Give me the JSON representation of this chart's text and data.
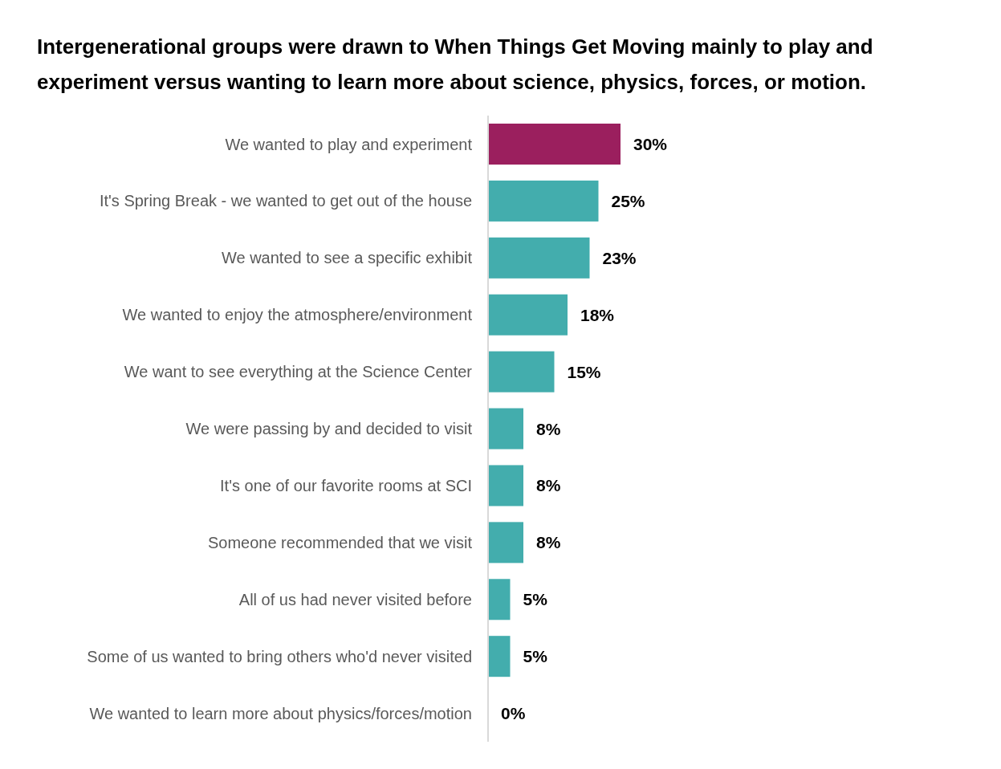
{
  "chart_data": {
    "type": "bar",
    "orientation": "horizontal",
    "title": "Intergenerational groups were drawn to When Things Get Moving mainly to play and experiment versus wanting to learn more about science, physics, forces, or motion.",
    "categories": [
      "We wanted to play and experiment",
      "It's Spring Break - we wanted to get out of the house",
      "We wanted to see a specific exhibit",
      "We wanted to enjoy the atmosphere/environment",
      "We want to see everything at the Science Center",
      "We were passing by and decided to visit",
      "It's one of our favorite rooms at SCI",
      "Someone recommended that we visit",
      "All of us had never visited before",
      "Some of us wanted to bring others who'd never visited",
      "We wanted to learn more about physics/forces/motion"
    ],
    "values": [
      30,
      25,
      23,
      18,
      15,
      8,
      8,
      8,
      5,
      5,
      0
    ],
    "value_labels": [
      "30%",
      "25%",
      "23%",
      "18%",
      "15%",
      "8%",
      "8%",
      "8%",
      "5%",
      "5%",
      "0%"
    ],
    "colors": [
      "#9b1f5e",
      "#43adad",
      "#43adad",
      "#43adad",
      "#43adad",
      "#43adad",
      "#43adad",
      "#43adad",
      "#43adad",
      "#43adad",
      "#43adad"
    ],
    "grid": false,
    "legend": false
  }
}
